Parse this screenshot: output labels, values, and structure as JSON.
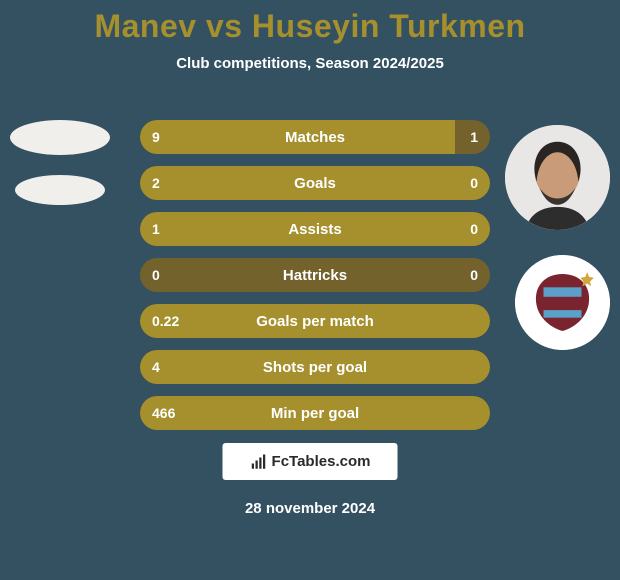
{
  "background_color": "#345161",
  "title": {
    "text": "Manev vs Huseyin Turkmen",
    "color": "#a6902d",
    "fontsize": 32
  },
  "subtitle": {
    "text": "Club competitions, Season 2024/2025",
    "color": "#ffffff",
    "fontsize": 15
  },
  "row_style": {
    "bg_color": "#74622d",
    "fill_color": "#a6902d",
    "text_color": "#ffffff",
    "height": 34,
    "radius": 17,
    "fontsize": 15
  },
  "rows": [
    {
      "label": "Matches",
      "left": "9",
      "right": "1",
      "fill_pct": 90
    },
    {
      "label": "Goals",
      "left": "2",
      "right": "0",
      "fill_pct": 100
    },
    {
      "label": "Assists",
      "left": "1",
      "right": "0",
      "fill_pct": 100
    },
    {
      "label": "Hattricks",
      "left": "0",
      "right": "0",
      "fill_pct": 0
    },
    {
      "label": "Goals per match",
      "left": "0.22",
      "right": "",
      "fill_pct": 100
    },
    {
      "label": "Shots per goal",
      "left": "4",
      "right": "",
      "fill_pct": 100
    },
    {
      "label": "Min per goal",
      "left": "466",
      "right": "",
      "fill_pct": 100
    }
  ],
  "badge": {
    "text": "FcTables.com",
    "bg": "#ffffff",
    "fg": "#2a2a2a"
  },
  "date": {
    "text": "28 november 2024",
    "color": "#ffffff"
  },
  "left_ellipses": {
    "color": "#f0efec"
  },
  "right_avatar_crest": {
    "bg": "#ffffff",
    "accent": "#7a2430",
    "blue": "#5aa0c8"
  }
}
